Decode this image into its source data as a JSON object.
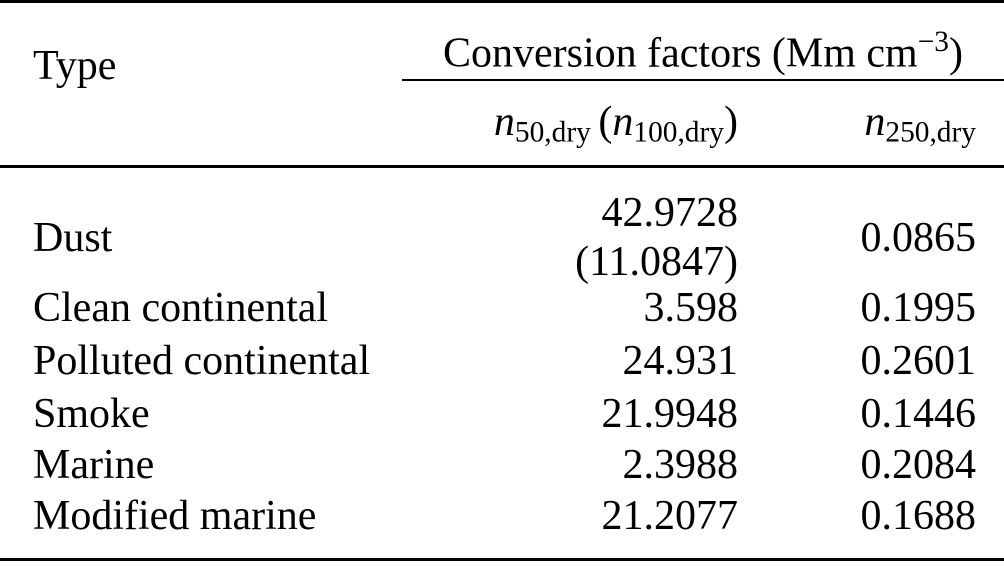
{
  "table": {
    "type_header": "Type",
    "group_header": {
      "prefix": "Conversion factors (Mm cm",
      "superscript": "−3",
      "suffix": ")"
    },
    "subheaders": {
      "col2": {
        "var1": "n",
        "sub1": "50,dry",
        "open_paren": "(",
        "var2": "n",
        "sub2": "100,dry",
        "close_paren": ")"
      },
      "col3": {
        "var": "n",
        "sub": "250,dry"
      }
    },
    "rows": [
      {
        "type": "Dust",
        "n50": "42.9728",
        "n100": "(11.0847)",
        "n250": "0.0865"
      },
      {
        "type": "Clean continental",
        "n50": "3.598",
        "n250": "0.1995"
      },
      {
        "type": "Polluted continental",
        "n50": "24.931",
        "n250": "0.2601"
      },
      {
        "type": "Smoke",
        "n50": "21.9948",
        "n250": "0.1446"
      },
      {
        "type": "Marine",
        "n50": "2.3988",
        "n250": "0.2084"
      },
      {
        "type": "Modified marine",
        "n50": "21.2077",
        "n250": "0.1688"
      }
    ],
    "colors": {
      "text": "#000000",
      "background": "#ffffff",
      "rule": "#000000"
    }
  }
}
